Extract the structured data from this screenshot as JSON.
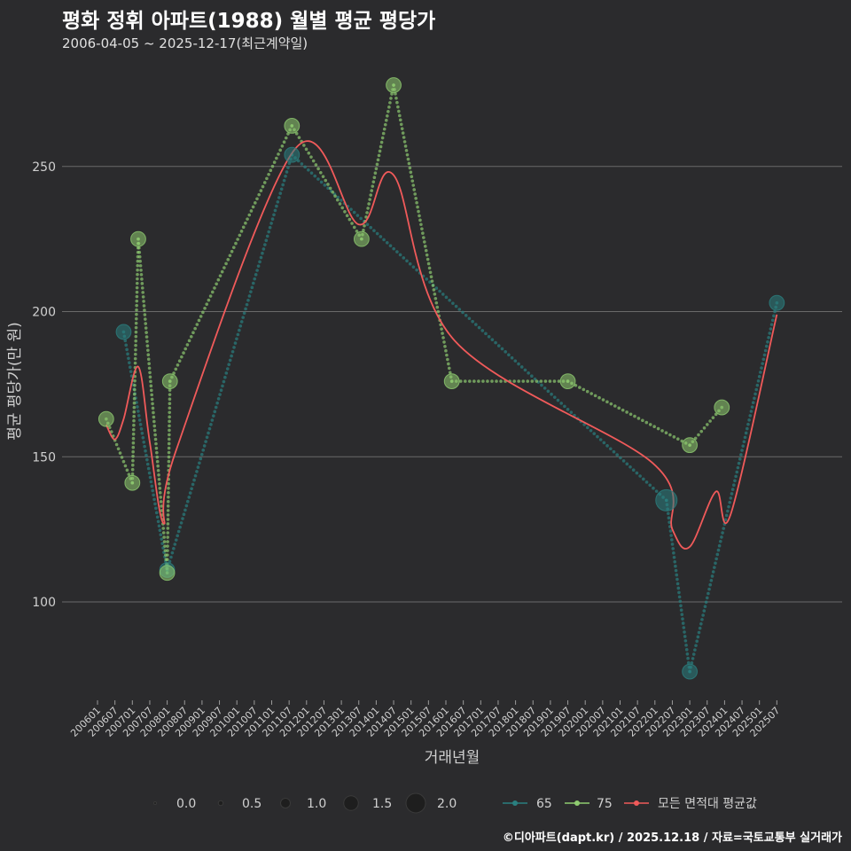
{
  "title": "평화 정휘 아파트(1988) 월별 평균 평당가",
  "subtitle": "2006-04-05 ~ 2025-12-17(최근계약일)",
  "caption": "©디아파트(dapt.kr) / 2025.12.18 / 자료=국토교통부 실거래가",
  "colors": {
    "background": "#2b2b2d",
    "grid": "#6a6a6a",
    "s65": "#2a8080",
    "s75": "#8fcc70",
    "avg": "#f05a5a"
  },
  "chart_data": {
    "type": "line",
    "title": "평화 정휘 아파트(1988) 월별 평균 평당가",
    "xlabel": "거래년월",
    "ylabel": "평균 평당가(만 원)",
    "ylim": [
      75,
      285
    ],
    "yticks": [
      100,
      150,
      200,
      250
    ],
    "xlim": [
      2006.0,
      2026.0
    ],
    "xticks": [
      "200601",
      "200607",
      "200701",
      "200707",
      "200801",
      "200807",
      "200901",
      "200907",
      "201001",
      "201007",
      "201101",
      "201107",
      "201201",
      "201207",
      "201301",
      "201307",
      "201401",
      "201407",
      "201501",
      "201507",
      "201601",
      "201607",
      "201701",
      "201707",
      "201801",
      "201807",
      "201901",
      "201907",
      "202001",
      "202007",
      "202101",
      "202107",
      "202201",
      "202207",
      "202301",
      "202307",
      "202401",
      "202407",
      "202501",
      "202507"
    ],
    "size_legend": {
      "title": "",
      "values": [
        "0.0",
        "0.5",
        "1.0",
        "1.5",
        "2.0"
      ]
    },
    "series": [
      {
        "name": "65",
        "points": [
          {
            "t": 2006.75,
            "y": 193,
            "size": 1.2
          },
          {
            "t": 2008.0,
            "y": 111,
            "size": 1.2
          },
          {
            "t": 2011.58,
            "y": 254,
            "size": 1.2
          },
          {
            "t": 2022.33,
            "y": 135,
            "size": 2.0
          },
          {
            "t": 2023.0,
            "y": 76,
            "size": 1.2
          },
          {
            "t": 2025.5,
            "y": 203,
            "size": 1.2
          }
        ]
      },
      {
        "name": "75",
        "points": [
          {
            "t": 2006.25,
            "y": 163,
            "size": 1.2
          },
          {
            "t": 2007.0,
            "y": 141,
            "size": 1.2
          },
          {
            "t": 2007.17,
            "y": 225,
            "size": 1.2
          },
          {
            "t": 2008.0,
            "y": 110,
            "size": 1.2
          },
          {
            "t": 2008.08,
            "y": 176,
            "size": 1.2
          },
          {
            "t": 2011.58,
            "y": 264,
            "size": 1.2
          },
          {
            "t": 2013.58,
            "y": 225,
            "size": 1.2
          },
          {
            "t": 2014.5,
            "y": 278,
            "size": 1.2
          },
          {
            "t": 2016.17,
            "y": 176,
            "size": 1.2
          },
          {
            "t": 2019.5,
            "y": 176,
            "size": 1.2
          },
          {
            "t": 2023.0,
            "y": 154,
            "size": 1.2
          },
          {
            "t": 2023.92,
            "y": 167,
            "size": 1.2
          }
        ]
      },
      {
        "name": "모든 면적대 평균값",
        "points": [
          {
            "t": 2006.25,
            "y": 161
          },
          {
            "t": 2006.5,
            "y": 156
          },
          {
            "t": 2006.75,
            "y": 163
          },
          {
            "t": 2007.17,
            "y": 181
          },
          {
            "t": 2007.5,
            "y": 155
          },
          {
            "t": 2007.9,
            "y": 127
          },
          {
            "t": 2008.25,
            "y": 152
          },
          {
            "t": 2011.67,
            "y": 256
          },
          {
            "t": 2013.5,
            "y": 230
          },
          {
            "t": 2014.5,
            "y": 247
          },
          {
            "t": 2016.25,
            "y": 190
          },
          {
            "t": 2021.92,
            "y": 148
          },
          {
            "t": 2022.5,
            "y": 125
          },
          {
            "t": 2023.0,
            "y": 119
          },
          {
            "t": 2023.75,
            "y": 138
          },
          {
            "t": 2024.17,
            "y": 130
          },
          {
            "t": 2025.5,
            "y": 199
          }
        ]
      }
    ],
    "legend": [
      "65",
      "75",
      "모든 면적대 평균값"
    ]
  }
}
